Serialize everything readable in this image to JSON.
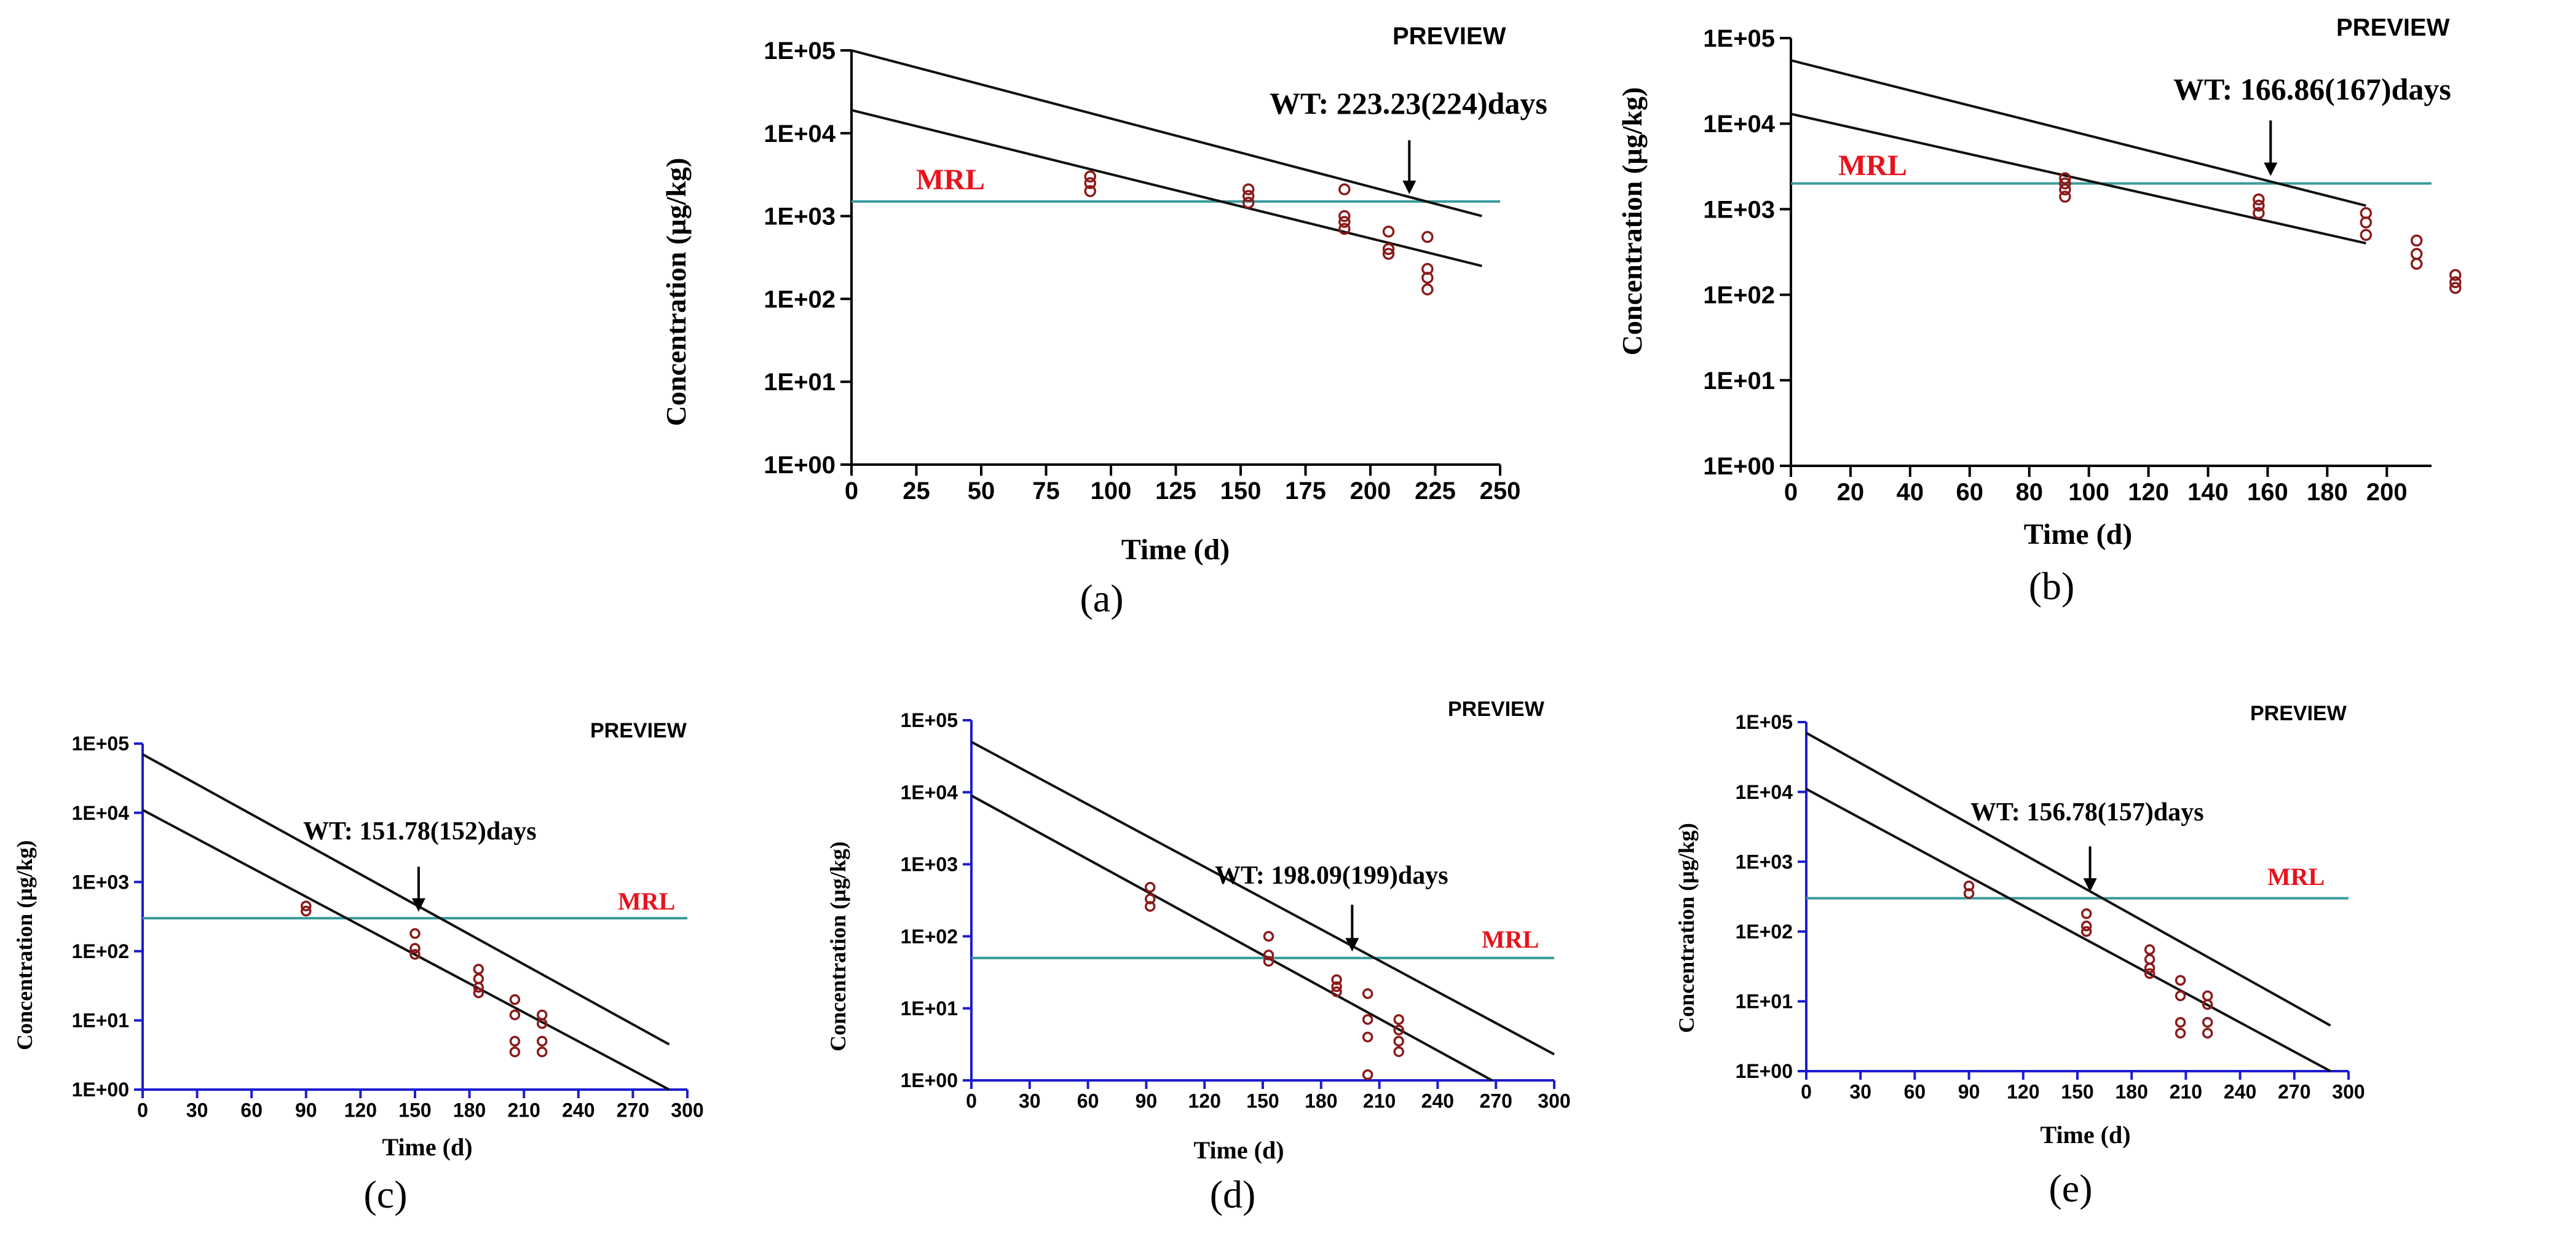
{
  "colors": {
    "mrl_line": "#3a9a9a",
    "mrl_text": "#e8121c",
    "points": "#8b1a1a",
    "axis_top": "#000000",
    "axis_bottom": "#1c1cd0"
  },
  "chart_data": [
    {
      "id": "a",
      "type": "scatter",
      "caption": "(a)",
      "preview_label": "PREVIEW",
      "xlabel": "Time (d)",
      "ylabel": "Concentration (µg/kg)",
      "x_ticks": [
        0,
        25,
        50,
        75,
        100,
        125,
        150,
        175,
        200,
        225,
        250
      ],
      "xlim": [
        0,
        250
      ],
      "y_ticks": [
        "1E+00",
        "1E+01",
        "1E+02",
        "1E+03",
        "1E+04",
        "1E+05"
      ],
      "ylim_log10": [
        0,
        5
      ],
      "mrl_label": "MRL",
      "mrl_value": 1500,
      "wt_label": "WT: 223.23(224)days",
      "wt_x": 215,
      "points": [
        [
          92,
          3000
        ],
        [
          92,
          2500
        ],
        [
          92,
          2000
        ],
        [
          153,
          2100
        ],
        [
          153,
          1750
        ],
        [
          153,
          1450
        ],
        [
          190,
          2100
        ],
        [
          190,
          1000
        ],
        [
          190,
          850
        ],
        [
          190,
          700
        ],
        [
          207,
          650
        ],
        [
          207,
          400
        ],
        [
          207,
          350
        ],
        [
          222,
          560
        ],
        [
          222,
          230
        ],
        [
          222,
          180
        ],
        [
          222,
          130
        ]
      ],
      "lines": [
        {
          "name": "upper tolerance limit",
          "x": [
            0,
            243
          ],
          "y": [
            100000,
            1000
          ]
        },
        {
          "name": "regression line",
          "x": [
            0,
            243
          ],
          "y": [
            19000,
            250
          ]
        }
      ]
    },
    {
      "id": "b",
      "type": "scatter",
      "caption": "(b)",
      "preview_label": "PREVIEW",
      "xlabel": "Time (d)",
      "ylabel": "Concentration (µg/kg)",
      "x_ticks": [
        0,
        20,
        40,
        60,
        80,
        100,
        120,
        140,
        160,
        180,
        200
      ],
      "xlim": [
        0,
        215
      ],
      "y_ticks": [
        "1E+00",
        "1E+01",
        "1E+02",
        "1E+03",
        "1E+04",
        "1E+05"
      ],
      "ylim_log10": [
        0,
        5
      ],
      "mrl_label": "MRL",
      "mrl_value": 2000,
      "wt_label": "WT: 166.86(167)days",
      "wt_x": 161,
      "points": [
        [
          92,
          2300
        ],
        [
          92,
          2000
        ],
        [
          92,
          1700
        ],
        [
          92,
          1400
        ],
        [
          157,
          1300
        ],
        [
          157,
          1100
        ],
        [
          157,
          900
        ],
        [
          193,
          900
        ],
        [
          193,
          700
        ],
        [
          193,
          500
        ],
        [
          210,
          430
        ],
        [
          210,
          300
        ],
        [
          210,
          230
        ],
        [
          223,
          170
        ],
        [
          223,
          140
        ],
        [
          223,
          120
        ]
      ],
      "lines": [
        {
          "name": "upper tolerance limit",
          "x": [
            0,
            193
          ],
          "y": [
            55000,
            1100
          ]
        },
        {
          "name": "regression line",
          "x": [
            0,
            193
          ],
          "y": [
            13000,
            400
          ]
        }
      ]
    },
    {
      "id": "c",
      "type": "scatter",
      "caption": "(c)",
      "preview_label": "PREVIEW",
      "xlabel": "Time (d)",
      "ylabel": "Concentration (µg/kg)",
      "x_ticks": [
        0,
        30,
        60,
        90,
        120,
        150,
        180,
        210,
        240,
        270,
        300
      ],
      "xlim": [
        0,
        300
      ],
      "y_ticks": [
        "1E+00",
        "1E+01",
        "1E+02",
        "1E+03",
        "1E+04",
        "1E+05"
      ],
      "ylim_log10": [
        0,
        5
      ],
      "mrl_label": "MRL",
      "mrl_value": 300,
      "wt_label": "WT: 151.78(152)days",
      "wt_x": 152,
      "points": [
        [
          90,
          450
        ],
        [
          90,
          380
        ],
        [
          150,
          180
        ],
        [
          150,
          110
        ],
        [
          150,
          90
        ],
        [
          185,
          55
        ],
        [
          185,
          40
        ],
        [
          185,
          30
        ],
        [
          185,
          25
        ],
        [
          205,
          20
        ],
        [
          205,
          12
        ],
        [
          205,
          5
        ],
        [
          205,
          3.5
        ],
        [
          220,
          12
        ],
        [
          220,
          9
        ],
        [
          220,
          5
        ],
        [
          220,
          3.5
        ]
      ],
      "lines": [
        {
          "name": "upper tolerance limit",
          "x": [
            0,
            290
          ],
          "y": [
            70000,
            4.5
          ]
        },
        {
          "name": "regression line",
          "x": [
            0,
            290
          ],
          "y": [
            11000,
            1
          ]
        }
      ]
    },
    {
      "id": "d",
      "type": "scatter",
      "caption": "(d)",
      "preview_label": "PREVIEW",
      "xlabel": "Time (d)",
      "ylabel": "Concentration (µg/kg)",
      "x_ticks": [
        0,
        30,
        60,
        90,
        120,
        150,
        180,
        210,
        240,
        270,
        300
      ],
      "xlim": [
        0,
        300
      ],
      "y_ticks": [
        "1E+00",
        "1E+01",
        "1E+02",
        "1E+03",
        "1E+04",
        "1E+05"
      ],
      "ylim_log10": [
        0,
        5
      ],
      "mrl_label": "MRL",
      "mrl_value": 50,
      "wt_label": "WT: 198.09(199)days",
      "wt_x": 196,
      "points": [
        [
          92,
          480
        ],
        [
          92,
          330
        ],
        [
          92,
          260
        ],
        [
          153,
          100
        ],
        [
          153,
          55
        ],
        [
          153,
          45
        ],
        [
          188,
          25
        ],
        [
          188,
          20
        ],
        [
          188,
          17
        ],
        [
          204,
          16
        ],
        [
          204,
          7
        ],
        [
          204,
          4
        ],
        [
          204,
          1.2
        ],
        [
          220,
          7
        ],
        [
          220,
          5
        ],
        [
          220,
          3.5
        ],
        [
          220,
          2.5
        ]
      ],
      "lines": [
        {
          "name": "upper tolerance limit",
          "x": [
            0,
            300
          ],
          "y": [
            50000,
            2.3
          ]
        },
        {
          "name": "regression line",
          "x": [
            0,
            268
          ],
          "y": [
            9000,
            1
          ]
        }
      ]
    },
    {
      "id": "e",
      "type": "scatter",
      "caption": "(e)",
      "preview_label": "PREVIEW",
      "xlabel": "Time (d)",
      "ylabel": "Concentration (µg/kg)",
      "x_ticks": [
        0,
        30,
        60,
        90,
        120,
        150,
        180,
        210,
        240,
        270,
        300
      ],
      "xlim": [
        0,
        300
      ],
      "y_ticks": [
        "1E+00",
        "1E+01",
        "1E+02",
        "1E+03",
        "1E+04",
        "1E+05"
      ],
      "ylim_log10": [
        0,
        5
      ],
      "mrl_label": "MRL",
      "mrl_value": 300,
      "wt_label": "WT: 156.78(157)days",
      "wt_x": 157,
      "points": [
        [
          90,
          450
        ],
        [
          90,
          350
        ],
        [
          155,
          180
        ],
        [
          155,
          120
        ],
        [
          155,
          100
        ],
        [
          190,
          55
        ],
        [
          190,
          40
        ],
        [
          190,
          30
        ],
        [
          190,
          25
        ],
        [
          207,
          20
        ],
        [
          207,
          12
        ],
        [
          207,
          5
        ],
        [
          207,
          3.5
        ],
        [
          222,
          12
        ],
        [
          222,
          9
        ],
        [
          222,
          5
        ],
        [
          222,
          3.5
        ]
      ],
      "lines": [
        {
          "name": "upper tolerance limit",
          "x": [
            0,
            290
          ],
          "y": [
            70000,
            4.5
          ]
        },
        {
          "name": "regression line",
          "x": [
            0,
            290
          ],
          "y": [
            11000,
            1
          ]
        }
      ]
    }
  ]
}
